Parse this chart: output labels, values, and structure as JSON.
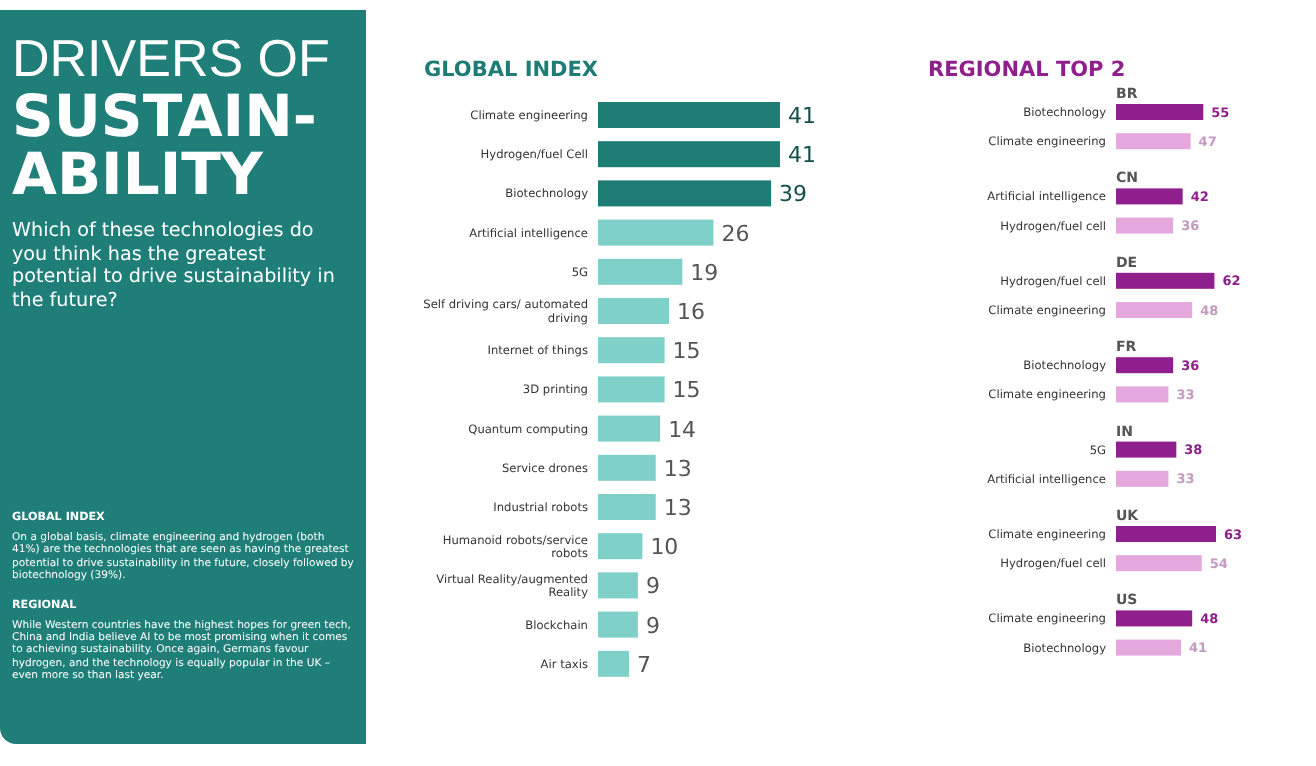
{
  "chart_data": [
    {
      "type": "other",
      "title": "DRIVERS OF\nSUSTAIN-\nABILITY",
      "subtitle": "Which of these technologies do you think has the greatest potential to drive sustainability in the future?",
      "annotations": [
        "GLOBAL INDEX",
        "On a global basis, climate engineering and hydrogen (both 41%) are the technologies that are seen as having the greatest potential to drive sustainability in the future, closely followed by biotechnology (39%).",
        "REGIONAL",
        "While Western countries have the highest hopes for green tech, China and India believe AI to be most promising when it comes to achieving sustainability. Once again, Germans favour hydrogen, and the technology is equally popular in the UK – even more so than last year."
      ]
    },
    {
      "type": "bar",
      "orientation": "horizontal",
      "title": "GLOBAL INDEX",
      "categories": [
        "Climate engineering",
        "Hydrogen/fuel Cell",
        "Biotechnology",
        "Artificial intelligence",
        "5G",
        "Self driving cars/ automated driving",
        "Internet of things",
        "3D printing",
        "Quantum computing",
        "Service drones",
        "Industrial robots",
        "Humanoid robots/service robots",
        "Virtual Reality/augmented Reality",
        "Blockchain",
        "Air taxis"
      ],
      "values": [
        41,
        41,
        39,
        26,
        19,
        16,
        15,
        15,
        14,
        13,
        13,
        10,
        9,
        9,
        7
      ],
      "colors": [
        "#1d7d74",
        "#1d7d74",
        "#1d7d74",
        "#7fd0c8",
        "#7fd0c8",
        "#7fd0c8",
        "#7fd0c8",
        "#7fd0c8",
        "#7fd0c8",
        "#7fd0c8",
        "#7fd0c8",
        "#7fd0c8",
        "#7fd0c8",
        "#7fd0c8",
        "#7fd0c8"
      ],
      "data_labels": true,
      "tick_labels": false
    },
    {
      "type": "bar",
      "orientation": "horizontal",
      "title": "REGIONAL TOP 2",
      "categories": [
        "Biotechnology",
        "Climate engineering",
        "Artificial intelligence",
        "Hydrogen/fuel cell",
        "Hydrogen/fuel cell",
        "Climate engineering",
        "Biotechnology",
        "Climate engineering",
        "5G",
        "Artificial intelligence",
        "Climate engineering",
        "Hydrogen/fuel cell",
        "Climate engineering",
        "Biotechnology"
      ],
      "values": [
        55,
        47,
        42,
        36,
        62,
        48,
        36,
        33,
        38,
        33,
        63,
        54,
        48,
        41
      ],
      "colors": [
        "#8e1f8c",
        "#e4a8dd",
        "#8e1f8c",
        "#e4a8dd",
        "#8e1f8c",
        "#e4a8dd",
        "#8e1f8c",
        "#e4a8dd",
        "#8e1f8c",
        "#e4a8dd",
        "#8e1f8c",
        "#e4a8dd",
        "#8e1f8c",
        "#e4a8dd"
      ],
      "annotations": [
        "BR",
        "CN",
        "DE",
        "FR",
        "IN",
        "UK",
        "US"
      ],
      "data_labels": true,
      "tick_labels": false
    }
  ]
}
